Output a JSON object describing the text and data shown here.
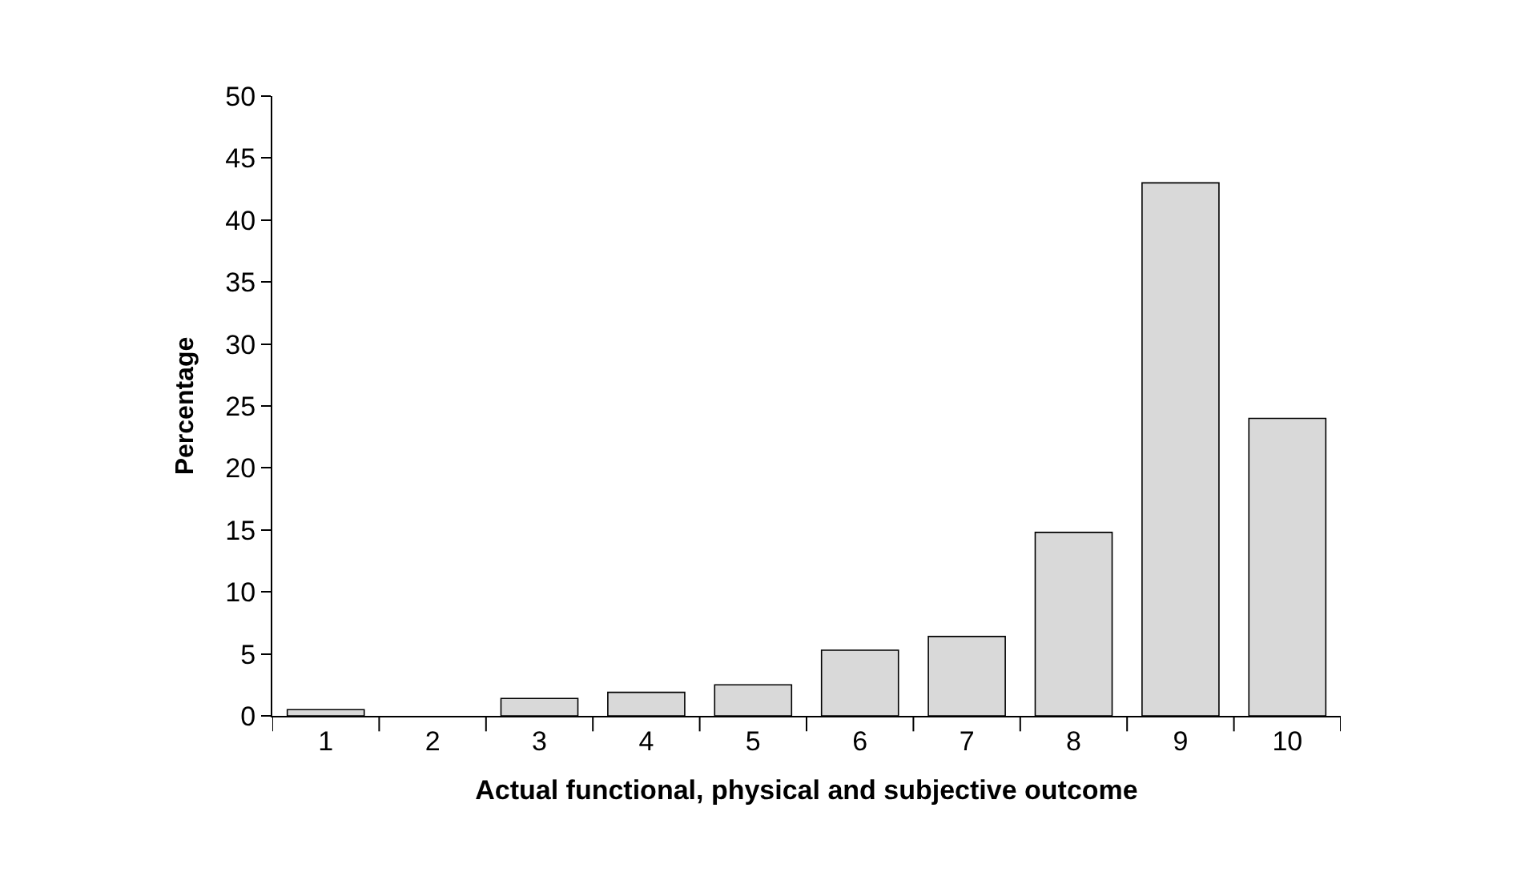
{
  "chart_data": {
    "type": "bar",
    "xlabel": "Actual functional, physical and subjective outcome",
    "ylabel": "Percentage",
    "categories": [
      "1",
      "2",
      "3",
      "4",
      "5",
      "6",
      "7",
      "8",
      "9",
      "10"
    ],
    "values": [
      0.5,
      0,
      1.4,
      1.9,
      2.5,
      5.3,
      6.4,
      14.8,
      43.0,
      24.0
    ],
    "color": "#d9d9d9",
    "ylim": [
      0,
      50
    ],
    "yticks": [
      0,
      5,
      10,
      15,
      20,
      25,
      30,
      35,
      40,
      45,
      50
    ]
  }
}
